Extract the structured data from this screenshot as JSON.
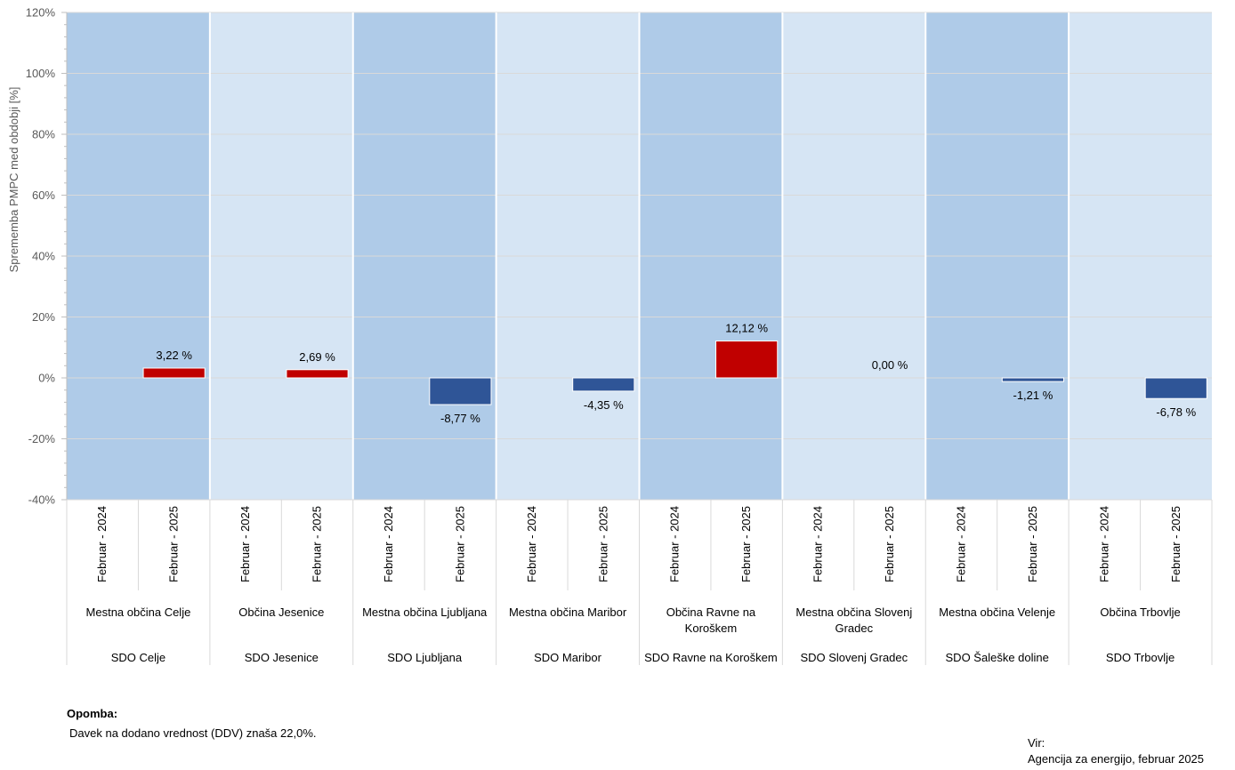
{
  "chart_data": {
    "type": "bar",
    "ylabel": "Sprememba PMPC med obdobji [%]",
    "ylim": [
      -40,
      120
    ],
    "yticks": [
      -40,
      -20,
      0,
      20,
      40,
      60,
      80,
      100,
      120
    ],
    "ytick_labels": [
      "-40%",
      "-20%",
      "0%",
      "20%",
      "40%",
      "60%",
      "80%",
      "100%",
      "120%"
    ],
    "period_labels": [
      "Februar - 2024",
      "Februar - 2025"
    ],
    "grid": true,
    "colors": {
      "positive": "#C00000",
      "negative": "#2F5597",
      "band_dark": "#AFCBE8",
      "band_light": "#D6E5F4",
      "grid": "#D9D9D9",
      "axis_text": "#595959"
    },
    "groups": [
      {
        "sdo": "SDO Celje",
        "obcina": [
          "Mestna občina Celje"
        ],
        "value": 3.22,
        "value_label": "3,22 %"
      },
      {
        "sdo": "SDO Jesenice",
        "obcina": [
          "Občina Jesenice"
        ],
        "value": 2.69,
        "value_label": "2,69 %"
      },
      {
        "sdo": "SDO Ljubljana",
        "obcina": [
          "Mestna občina Ljubljana"
        ],
        "value": -8.77,
        "value_label": "-8,77 %"
      },
      {
        "sdo": "SDO Maribor",
        "obcina": [
          "Mestna občina Maribor"
        ],
        "value": -4.35,
        "value_label": "-4,35 %"
      },
      {
        "sdo": "SDO Ravne na Koroškem",
        "obcina": [
          "Občina Ravne na",
          "Koroškem"
        ],
        "value": 12.12,
        "value_label": "12,12 %"
      },
      {
        "sdo": "SDO Slovenj Gradec",
        "obcina": [
          "Mestna občina Slovenj",
          "Gradec"
        ],
        "value": 0.0,
        "value_label": "0,00 %"
      },
      {
        "sdo": "SDO Šaleške doline",
        "obcina": [
          "Mestna občina Velenje"
        ],
        "value": -1.21,
        "value_label": "-1,21 %"
      },
      {
        "sdo": "SDO Trbovlje",
        "obcina": [
          "Občina Trbovlje"
        ],
        "value": -6.78,
        "value_label": "-6,78 %"
      }
    ]
  },
  "note": {
    "title": "Opomba:",
    "text": "Davek na dodano vrednost (DDV) znaša 22,0%."
  },
  "source": {
    "label": "Vir:",
    "text": "Agencija za energijo, februar 2025"
  }
}
